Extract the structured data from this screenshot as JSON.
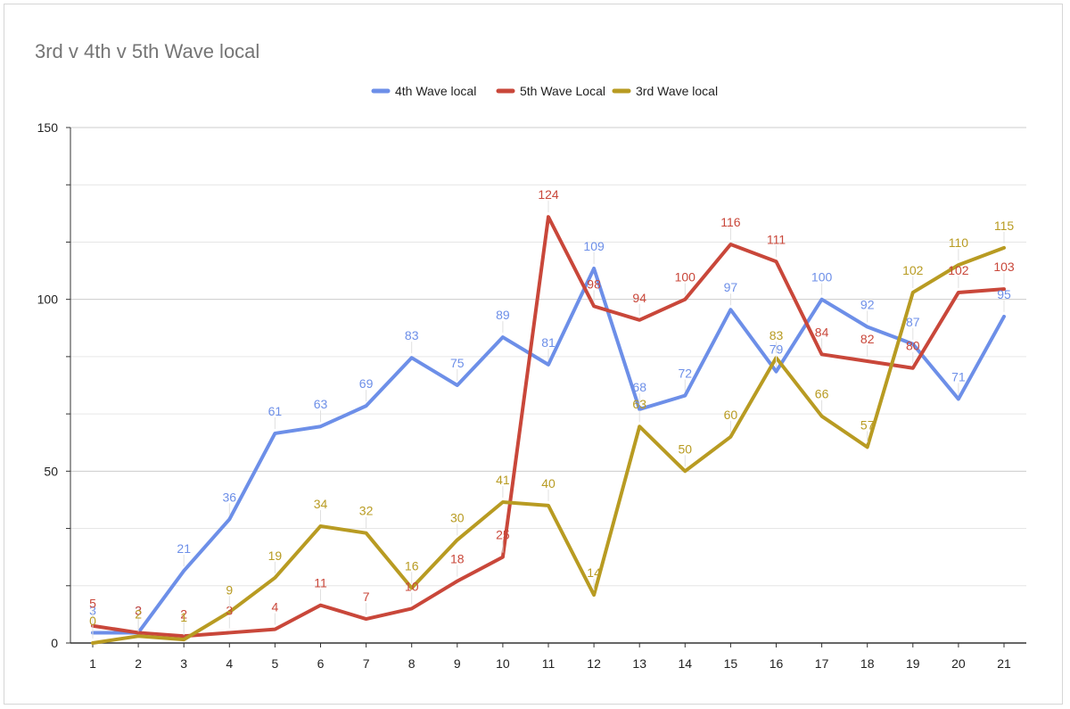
{
  "chart_data": {
    "type": "line",
    "title": "3rd v 4th v 5th Wave local",
    "xlabel": "",
    "ylabel": "",
    "x": [
      1,
      2,
      3,
      4,
      5,
      6,
      7,
      8,
      9,
      10,
      11,
      12,
      13,
      14,
      15,
      16,
      17,
      18,
      19,
      20,
      21
    ],
    "x_labels": [
      "1",
      "2",
      "3",
      "4",
      "5",
      "6",
      "7",
      "8",
      "9",
      "10",
      "11",
      "12",
      "13",
      "14",
      "15",
      "16",
      "17",
      "18",
      "19",
      "20",
      "21"
    ],
    "ylim": [
      0,
      150
    ],
    "yticks": [
      0,
      50,
      100,
      150
    ],
    "y_tick_labels": [
      "0",
      "50",
      "100",
      "150"
    ],
    "grid": true,
    "legend_position": "top-center",
    "series": [
      {
        "name": "4th Wave local",
        "color": "#6d8fe8",
        "values": [
          3,
          3,
          21,
          36,
          61,
          63,
          69,
          83,
          75,
          89,
          81,
          109,
          68,
          72,
          97,
          79,
          100,
          92,
          87,
          71,
          95
        ]
      },
      {
        "name": "5th Wave Local",
        "color": "#c9473a",
        "values": [
          5,
          3,
          2,
          3,
          4,
          11,
          7,
          10,
          18,
          25,
          124,
          98,
          94,
          100,
          116,
          111,
          84,
          82,
          80,
          102,
          103
        ]
      },
      {
        "name": "3rd Wave local",
        "color": "#b89b22",
        "values": [
          0,
          2,
          1,
          9,
          19,
          34,
          32,
          16,
          30,
          41,
          40,
          14,
          63,
          50,
          60,
          83,
          66,
          57,
          102,
          110,
          115
        ]
      }
    ]
  }
}
